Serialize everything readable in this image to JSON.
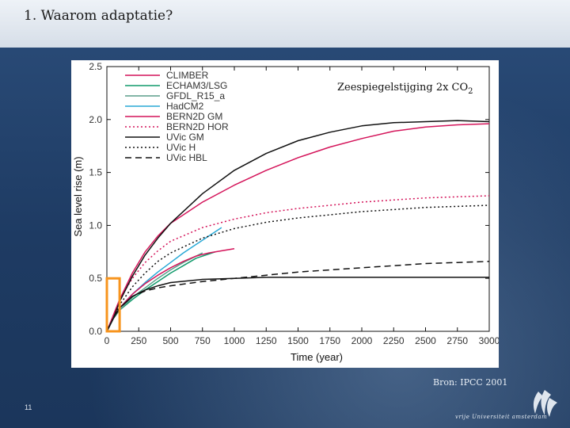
{
  "slide": {
    "title": "1. Waarom adaptatie?",
    "source": "Bron: IPCC 2001",
    "page_number": "11",
    "logo_text": "vrije Universiteit  amsterdam"
  },
  "chart_data": {
    "type": "line",
    "title": "Zeespiegelstijging 2x CO",
    "title_subscript": "2",
    "xlabel": "Time (year)",
    "ylabel": "Sea level rise (m)",
    "xlim": [
      0,
      3000
    ],
    "ylim": [
      0,
      2.5
    ],
    "xticks": [
      "0",
      "250",
      "500",
      "750",
      "1000",
      "1250",
      "1500",
      "1750",
      "2000",
      "2250",
      "2500",
      "2750",
      "3000"
    ],
    "yticks": [
      "0.0",
      "0.5",
      "1.0",
      "1.5",
      "2.0",
      "2.5"
    ],
    "legend_position": "top-left",
    "highlight_box": {
      "x": [
        0,
        100
      ],
      "y": [
        0,
        0.5
      ],
      "color": "#f7941d"
    },
    "series": [
      {
        "name": "CLIMBER",
        "color": "#d4145a",
        "dash": "solid",
        "x": [
          0,
          50,
          100,
          200,
          300,
          400,
          500,
          750,
          1000,
          1250,
          1500,
          1750,
          2000,
          2250,
          2500,
          2750,
          3000
        ],
        "y": [
          0,
          0.15,
          0.3,
          0.55,
          0.75,
          0.9,
          1.02,
          1.22,
          1.38,
          1.52,
          1.64,
          1.74,
          1.82,
          1.89,
          1.93,
          1.95,
          1.96
        ]
      },
      {
        "name": "ECHAM3/LSG",
        "color": "#119a6b",
        "dash": "solid",
        "x": [
          0,
          50,
          100,
          200,
          300,
          400,
          500,
          600,
          700,
          850
        ],
        "y": [
          0,
          0.12,
          0.2,
          0.3,
          0.39,
          0.47,
          0.55,
          0.62,
          0.69,
          0.75
        ]
      },
      {
        "name": "GFDL_R15_a",
        "color": "#5a9e8a",
        "dash": "solid",
        "x": [
          0,
          50,
          100,
          200,
          300,
          400,
          500,
          600,
          750
        ],
        "y": [
          0,
          0.12,
          0.2,
          0.32,
          0.41,
          0.5,
          0.58,
          0.65,
          0.74
        ]
      },
      {
        "name": "HadCM2",
        "color": "#29a9d6",
        "dash": "solid",
        "x": [
          0,
          50,
          100,
          200,
          300,
          400,
          500,
          600,
          700,
          800,
          900
        ],
        "y": [
          0,
          0.13,
          0.22,
          0.35,
          0.46,
          0.56,
          0.65,
          0.74,
          0.82,
          0.9,
          0.98
        ]
      },
      {
        "name": "BERN2D GM",
        "color": "#d4145a",
        "dash": "solid",
        "x": [
          0,
          50,
          100,
          200,
          300,
          400,
          500,
          600,
          700,
          800,
          1000
        ],
        "y": [
          0,
          0.13,
          0.22,
          0.35,
          0.45,
          0.53,
          0.6,
          0.66,
          0.71,
          0.74,
          0.78
        ]
      },
      {
        "name": "BERN2D HOR",
        "color": "#d4145a",
        "dash": "dotted",
        "x": [
          0,
          100,
          200,
          300,
          400,
          500,
          750,
          1000,
          1250,
          1500,
          1750,
          2000,
          2250,
          2500,
          2750,
          3000
        ],
        "y": [
          0,
          0.3,
          0.5,
          0.65,
          0.76,
          0.85,
          0.98,
          1.06,
          1.12,
          1.16,
          1.19,
          1.22,
          1.24,
          1.26,
          1.27,
          1.28
        ]
      },
      {
        "name": "UVic GM",
        "color": "#111111",
        "dash": "solid",
        "x": [
          0,
          50,
          100,
          200,
          300,
          400,
          500,
          750,
          1000,
          1250,
          1500,
          1750,
          2000,
          2250,
          2500,
          2750,
          3000
        ],
        "y": [
          0,
          0.12,
          0.28,
          0.52,
          0.72,
          0.88,
          1.02,
          1.3,
          1.52,
          1.68,
          1.8,
          1.88,
          1.94,
          1.97,
          1.98,
          1.99,
          1.98
        ]
      },
      {
        "name": "UVic H",
        "color": "#111111",
        "dash": "dotted",
        "x": [
          0,
          100,
          200,
          300,
          400,
          500,
          750,
          1000,
          1250,
          1500,
          1750,
          2000,
          2250,
          2500,
          2750,
          3000
        ],
        "y": [
          0,
          0.25,
          0.42,
          0.55,
          0.66,
          0.74,
          0.88,
          0.97,
          1.03,
          1.07,
          1.1,
          1.13,
          1.15,
          1.17,
          1.18,
          1.19
        ]
      },
      {
        "name": "UVic HBL",
        "color": "#111111",
        "dash": "dashed",
        "x": [
          0,
          50,
          100,
          200,
          300,
          400,
          500,
          750,
          1000,
          1250,
          1500,
          1750,
          2000,
          2250,
          2500,
          2750,
          3000
        ],
        "y": [
          0,
          0.12,
          0.22,
          0.33,
          0.38,
          0.41,
          0.43,
          0.47,
          0.5,
          0.53,
          0.56,
          0.58,
          0.6,
          0.62,
          0.64,
          0.65,
          0.66
        ]
      },
      {
        "name": "",
        "color": "#111111",
        "dash": "solid",
        "x": [
          0,
          50,
          100,
          200,
          300,
          400,
          500,
          750,
          1000,
          1250,
          1500,
          1750,
          2000,
          2250,
          2500,
          2750,
          3000
        ],
        "y": [
          0,
          0.12,
          0.22,
          0.33,
          0.39,
          0.43,
          0.46,
          0.49,
          0.5,
          0.51,
          0.51,
          0.51,
          0.51,
          0.51,
          0.51,
          0.51,
          0.51
        ]
      }
    ]
  }
}
